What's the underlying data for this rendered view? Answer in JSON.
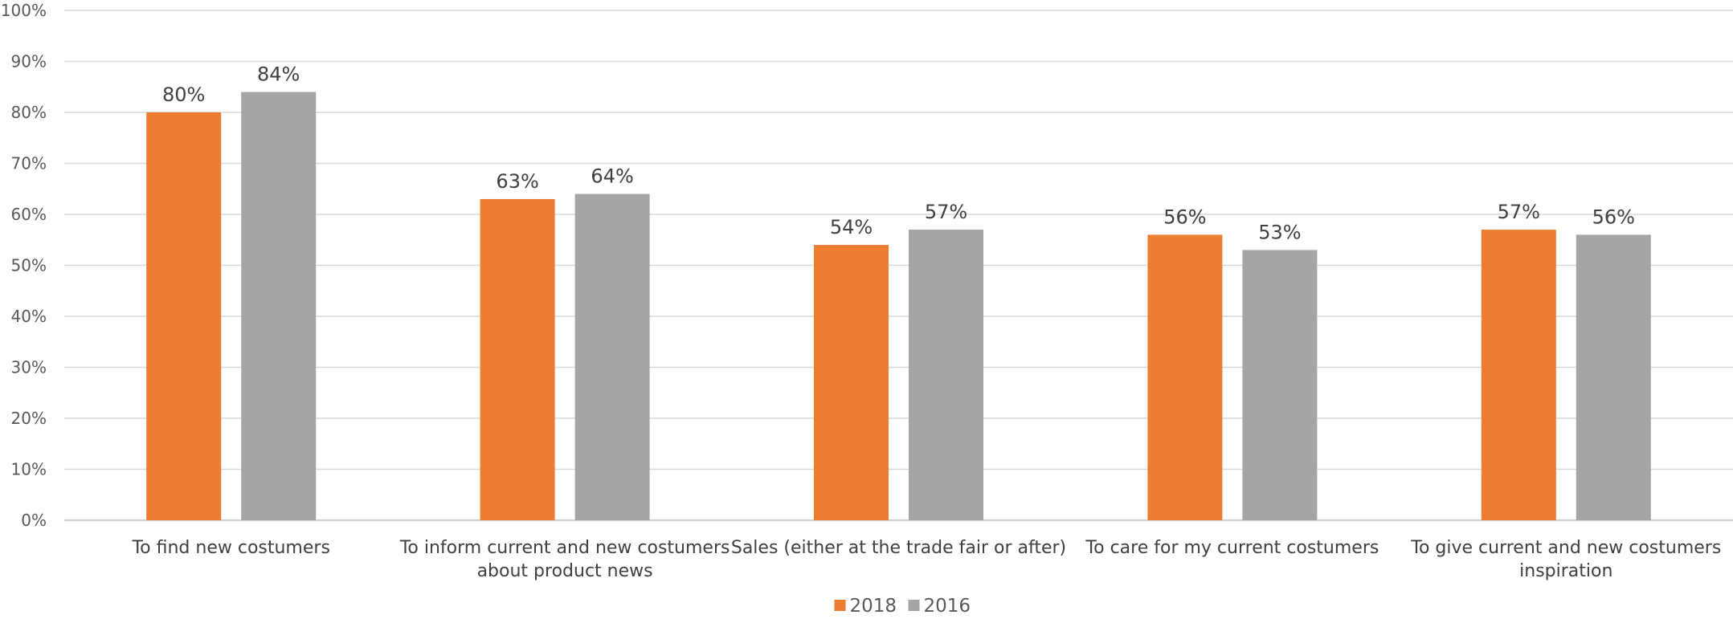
{
  "chart_data": {
    "type": "bar",
    "categories": [
      [
        "To find new costumers"
      ],
      [
        "To inform current and new costumers",
        "about product news"
      ],
      [
        "Sales (either at the trade fair or after)"
      ],
      [
        "To care for my current costumers"
      ],
      [
        "To give current and new costumers",
        "inspiration"
      ]
    ],
    "series": [
      {
        "name": "2018",
        "color": "#ED7D31",
        "values": [
          80,
          63,
          54,
          56,
          57
        ]
      },
      {
        "name": "2016",
        "color": "#A5A5A5",
        "values": [
          84,
          64,
          57,
          53,
          56
        ]
      }
    ],
    "data_labels": [
      [
        "80%",
        "63%",
        "54%",
        "56%",
        "57%"
      ],
      [
        "84%",
        "64%",
        "57%",
        "53%",
        "56%"
      ]
    ],
    "y_ticks": [
      "0%",
      "10%",
      "20%",
      "30%",
      "40%",
      "50%",
      "60%",
      "70%",
      "80%",
      "90%",
      "100%"
    ],
    "ylim": [
      0,
      100
    ],
    "grid": true,
    "legend_position": "bottom",
    "title": "",
    "xlabel": "",
    "ylabel": ""
  }
}
